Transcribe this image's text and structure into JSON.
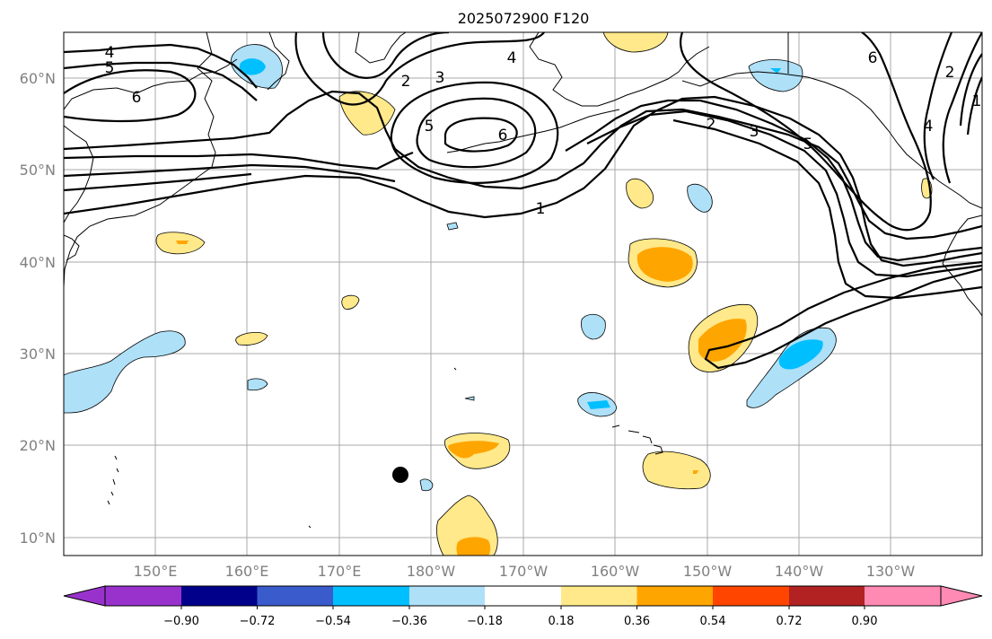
{
  "title": "2025072900 F120",
  "map": {
    "lat_labels": [
      "60°N",
      "50°N",
      "40°N",
      "30°N",
      "20°N",
      "10°N"
    ],
    "lon_labels": [
      "150°E",
      "160°E",
      "170°E",
      "180°W",
      "170°W",
      "160°W",
      "150°W",
      "140°W",
      "130°W"
    ],
    "contour_labels": [
      "4",
      "5",
      "6",
      "2",
      "3",
      "4",
      "5",
      "6",
      "1",
      "2",
      "3",
      "5",
      "6",
      "4",
      "2",
      "1"
    ],
    "storm_marker": "black-dot-storm-position"
  },
  "colorbar": {
    "tick_labels": [
      "−0.90",
      "−0.72",
      "−0.54",
      "−0.36",
      "−0.18",
      "0.18",
      "0.36",
      "0.54",
      "0.72",
      "0.90"
    ],
    "colors": [
      "#9932CC",
      "#00008B",
      "#3A5BCC",
      "#00BFFF",
      "#AEE0F8",
      "#FFFFFF",
      "#FFE98A",
      "#FFA500",
      "#FF4500",
      "#B22222",
      "#FF8AB4"
    ]
  },
  "colors": {
    "light_yellow": "#FFE98A",
    "orange": "#FFA500",
    "light_blue": "#AEE0F8",
    "deep_sky_blue": "#00BFFF",
    "grid": "#a8a8a8"
  }
}
